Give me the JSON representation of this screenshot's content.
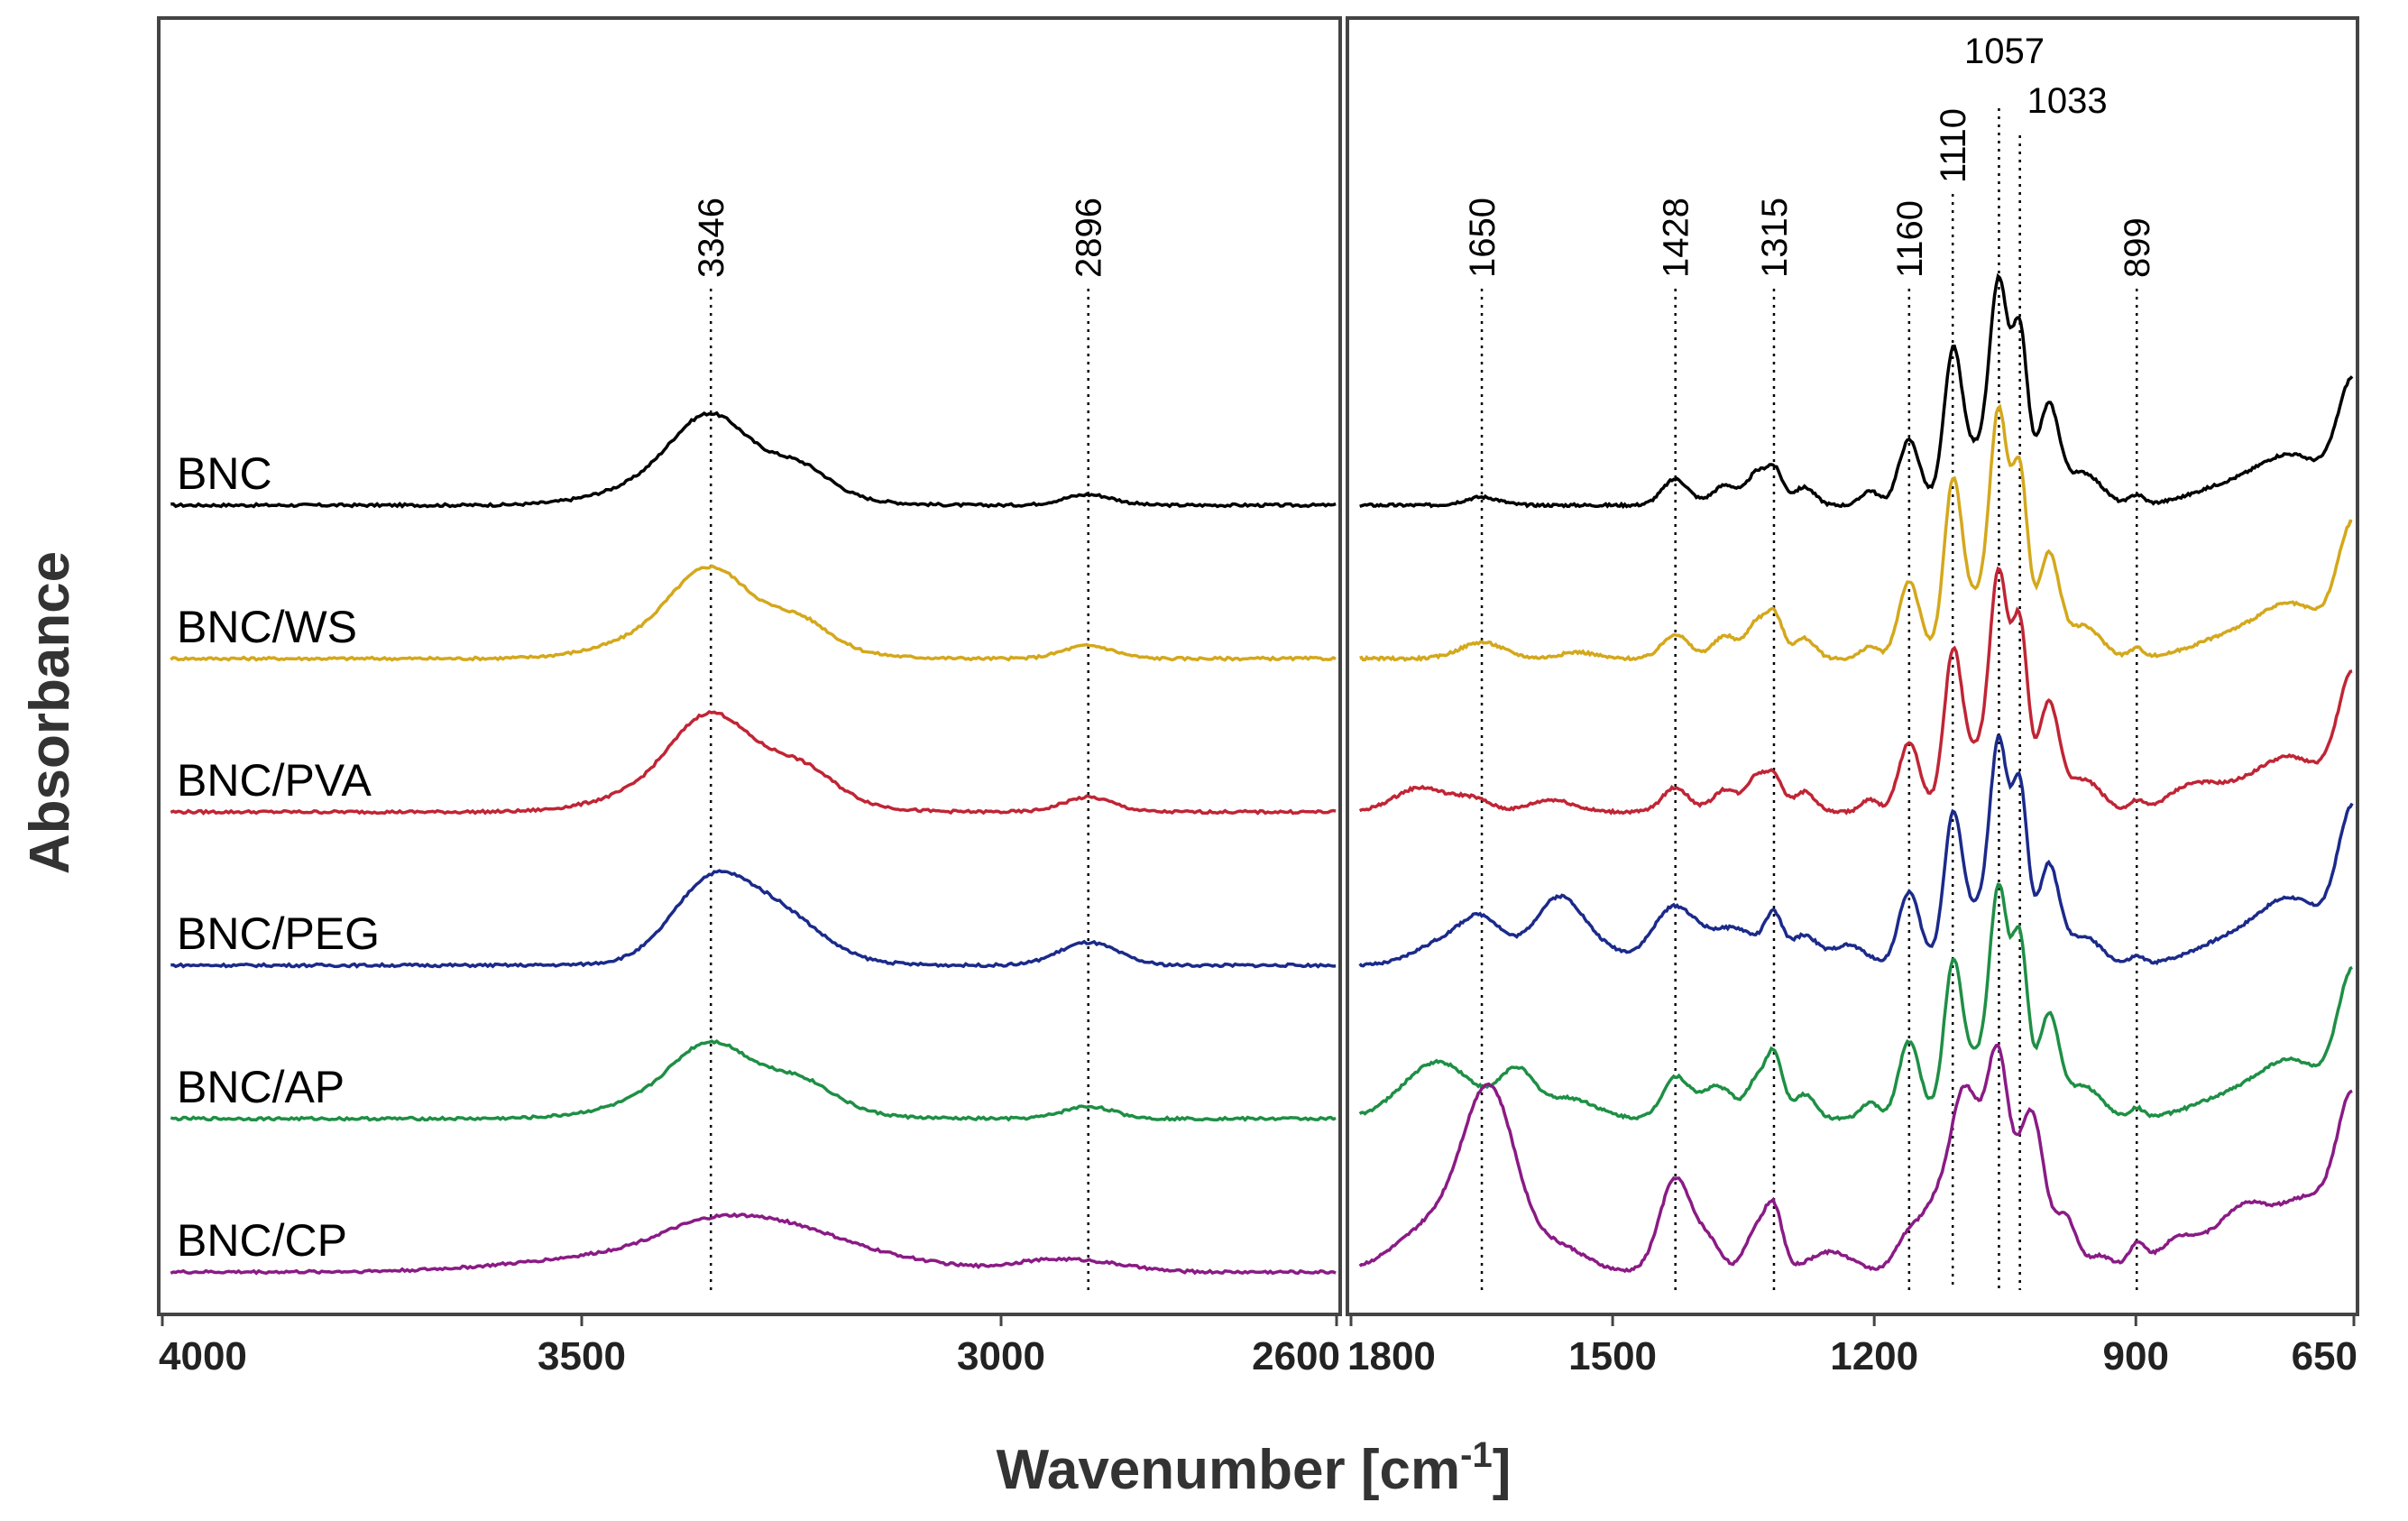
{
  "chart_data": {
    "type": "line",
    "title": "",
    "xlabel": "Wavenumber [cm",
    "xlabel_superscript": "-1",
    "xlabel_close": "]",
    "ylabel": "Absorbance",
    "panels": [
      {
        "name": "high-wavenumber",
        "xlim": [
          4000,
          2600
        ],
        "ticks": [
          4000,
          3500,
          3000,
          2600
        ]
      },
      {
        "name": "fingerprint",
        "xlim": [
          1800,
          650
        ],
        "ticks": [
          1800,
          1500,
          1200,
          900,
          650
        ]
      }
    ],
    "peak_markers": [
      {
        "label": "3346",
        "x": 3346
      },
      {
        "label": "2896",
        "x": 2896
      },
      {
        "label": "1650",
        "x": 1650
      },
      {
        "label": "1428",
        "x": 1428
      },
      {
        "label": "1315",
        "x": 1315
      },
      {
        "label": "1160",
        "x": 1160
      },
      {
        "label": "1110",
        "x": 1110
      },
      {
        "label": "1057",
        "x": 1057
      },
      {
        "label": "1033",
        "x": 1033
      },
      {
        "label": "899",
        "x": 899
      }
    ],
    "series": [
      {
        "name": "BNC",
        "color": "#000000",
        "offset": 5.0,
        "high_baseline": 0.0,
        "high_peaks": [
          [
            3346,
            0.8,
            45
          ],
          [
            3400,
            0.25,
            70
          ],
          [
            3240,
            0.3,
            35
          ],
          [
            3280,
            0.2,
            80
          ],
          [
            2896,
            0.13,
            30
          ]
        ],
        "fp_baseline": 0.0,
        "fp_peaks": [
          [
            1650,
            0.1,
            20
          ],
          [
            1428,
            0.32,
            15
          ],
          [
            1370,
            0.25,
            15
          ],
          [
            1336,
            0.35,
            10
          ],
          [
            1315,
            0.45,
            10
          ],
          [
            1280,
            0.22,
            12
          ],
          [
            1205,
            0.18,
            10
          ],
          [
            1160,
            0.8,
            12
          ],
          [
            1110,
            1.6,
            10
          ],
          [
            1057,
            2.3,
            10
          ],
          [
            1033,
            2.0,
            9
          ],
          [
            1000,
            1.2,
            12
          ],
          [
            1080,
            0.7,
            25
          ],
          [
            960,
            0.4,
            20
          ],
          [
            899,
            0.12,
            8
          ],
          [
            650,
            1.45,
            18
          ],
          [
            720,
            0.6,
            40
          ],
          [
            800,
            0.2,
            40
          ]
        ]
      },
      {
        "name": "BNC/WS",
        "color": "#d4a81c",
        "offset": 4.0,
        "high_baseline": 0.0,
        "high_peaks": [
          [
            3346,
            0.8,
            45
          ],
          [
            3400,
            0.25,
            70
          ],
          [
            3240,
            0.3,
            35
          ],
          [
            3280,
            0.2,
            80
          ],
          [
            2896,
            0.16,
            30
          ]
        ],
        "fp_baseline": 0.0,
        "fp_peaks": [
          [
            1650,
            0.2,
            25
          ],
          [
            1540,
            0.08,
            20
          ],
          [
            1428,
            0.3,
            15
          ],
          [
            1370,
            0.28,
            15
          ],
          [
            1336,
            0.4,
            10
          ],
          [
            1315,
            0.55,
            10
          ],
          [
            1280,
            0.25,
            12
          ],
          [
            1205,
            0.15,
            10
          ],
          [
            1160,
            0.95,
            12
          ],
          [
            1110,
            1.85,
            10
          ],
          [
            1057,
            2.55,
            10
          ],
          [
            1033,
            2.15,
            9
          ],
          [
            1000,
            1.25,
            12
          ],
          [
            1080,
            0.75,
            25
          ],
          [
            960,
            0.4,
            20
          ],
          [
            899,
            0.12,
            8
          ],
          [
            650,
            1.55,
            18
          ],
          [
            720,
            0.65,
            40
          ],
          [
            800,
            0.22,
            40
          ]
        ]
      },
      {
        "name": "BNC/PVA",
        "color": "#c02535",
        "offset": 3.0,
        "high_baseline": 0.0,
        "high_peaks": [
          [
            3346,
            0.85,
            45
          ],
          [
            3400,
            0.25,
            70
          ],
          [
            3240,
            0.35,
            40
          ],
          [
            3280,
            0.25,
            80
          ],
          [
            2896,
            0.18,
            30
          ]
        ],
        "fp_baseline": 0.0,
        "fp_peaks": [
          [
            1720,
            0.3,
            30
          ],
          [
            1660,
            0.15,
            20
          ],
          [
            1570,
            0.15,
            25
          ],
          [
            1428,
            0.3,
            15
          ],
          [
            1370,
            0.28,
            15
          ],
          [
            1336,
            0.4,
            10
          ],
          [
            1315,
            0.45,
            10
          ],
          [
            1280,
            0.25,
            12
          ],
          [
            1205,
            0.15,
            10
          ],
          [
            1160,
            0.85,
            12
          ],
          [
            1110,
            1.65,
            10
          ],
          [
            1057,
            2.45,
            10
          ],
          [
            1033,
            2.15,
            9
          ],
          [
            1000,
            1.3,
            12
          ],
          [
            1080,
            0.75,
            25
          ],
          [
            960,
            0.4,
            20
          ],
          [
            899,
            0.12,
            8
          ],
          [
            840,
            0.2,
            25
          ],
          [
            650,
            1.6,
            18
          ],
          [
            720,
            0.65,
            40
          ],
          [
            800,
            0.22,
            40
          ]
        ]
      },
      {
        "name": "BNC/PEG",
        "color": "#1b2a8a",
        "offset": 2.0,
        "high_baseline": 0.0,
        "high_peaks": [
          [
            3346,
            0.85,
            45
          ],
          [
            3260,
            0.4,
            45
          ],
          [
            3300,
            0.25,
            80
          ],
          [
            2896,
            0.28,
            35
          ]
        ],
        "fp_baseline": 0.0,
        "fp_peaks": [
          [
            1650,
            0.55,
            25
          ],
          [
            1700,
            0.25,
            30
          ],
          [
            1560,
            0.85,
            30
          ],
          [
            1500,
            0.1,
            20
          ],
          [
            1430,
            0.7,
            25
          ],
          [
            1360,
            0.45,
            30
          ],
          [
            1315,
            0.5,
            10
          ],
          [
            1280,
            0.35,
            15
          ],
          [
            1230,
            0.25,
            20
          ],
          [
            1160,
            0.9,
            12
          ],
          [
            1110,
            1.55,
            10
          ],
          [
            1057,
            2.3,
            10
          ],
          [
            1033,
            2.05,
            9
          ],
          [
            1000,
            1.2,
            12
          ],
          [
            1080,
            0.7,
            25
          ],
          [
            960,
            0.35,
            20
          ],
          [
            899,
            0.1,
            8
          ],
          [
            650,
            1.8,
            18
          ],
          [
            720,
            0.8,
            40
          ],
          [
            800,
            0.25,
            40
          ]
        ]
      },
      {
        "name": "BNC/AP",
        "color": "#1e8f45",
        "offset": 1.0,
        "high_baseline": 0.0,
        "high_peaks": [
          [
            3346,
            0.65,
            45
          ],
          [
            3400,
            0.2,
            70
          ],
          [
            3240,
            0.3,
            40
          ],
          [
            3280,
            0.2,
            80
          ],
          [
            2896,
            0.15,
            30
          ]
        ],
        "fp_baseline": 0.0,
        "fp_peaks": [
          [
            1700,
            0.7,
            40
          ],
          [
            1610,
            0.55,
            20
          ],
          [
            1550,
            0.25,
            30
          ],
          [
            1428,
            0.5,
            15
          ],
          [
            1380,
            0.4,
            20
          ],
          [
            1336,
            0.4,
            10
          ],
          [
            1315,
            0.8,
            10
          ],
          [
            1280,
            0.3,
            12
          ],
          [
            1205,
            0.2,
            10
          ],
          [
            1160,
            0.95,
            12
          ],
          [
            1110,
            1.6,
            10
          ],
          [
            1057,
            2.35,
            10
          ],
          [
            1033,
            2.05,
            9
          ],
          [
            1000,
            1.25,
            12
          ],
          [
            1080,
            0.75,
            25
          ],
          [
            960,
            0.4,
            20
          ],
          [
            899,
            0.12,
            8
          ],
          [
            650,
            1.7,
            18
          ],
          [
            720,
            0.7,
            40
          ],
          [
            800,
            0.22,
            40
          ]
        ]
      },
      {
        "name": "BNC/CP",
        "color": "#8a1b85",
        "offset": 0.0,
        "high_baseline": 0.0,
        "high_peaks": [
          [
            3346,
            0.35,
            60
          ],
          [
            3250,
            0.3,
            60
          ],
          [
            3400,
            0.25,
            140
          ],
          [
            3150,
            0.15,
            80
          ],
          [
            2896,
            0.12,
            50
          ],
          [
            2960,
            0.08,
            40
          ]
        ],
        "fp_baseline": 0.0,
        "fp_peaks": [
          [
            1640,
            2.05,
            30
          ],
          [
            1700,
            0.6,
            45
          ],
          [
            1560,
            0.3,
            30
          ],
          [
            1428,
            1.15,
            18
          ],
          [
            1390,
            0.35,
            15
          ],
          [
            1336,
            0.5,
            12
          ],
          [
            1315,
            0.75,
            10
          ],
          [
            1250,
            0.25,
            25
          ],
          [
            1160,
            0.45,
            15
          ],
          [
            1130,
            0.7,
            15
          ],
          [
            1100,
            1.6,
            15
          ],
          [
            1057,
            1.85,
            12
          ],
          [
            1020,
            1.95,
            15
          ],
          [
            1075,
            1.2,
            20
          ],
          [
            980,
            0.65,
            12
          ],
          [
            940,
            0.2,
            15
          ],
          [
            899,
            0.3,
            10
          ],
          [
            850,
            0.4,
            25
          ],
          [
            780,
            0.7,
            30
          ],
          [
            700,
            0.9,
            40
          ],
          [
            650,
            1.8,
            18
          ]
        ]
      }
    ]
  }
}
